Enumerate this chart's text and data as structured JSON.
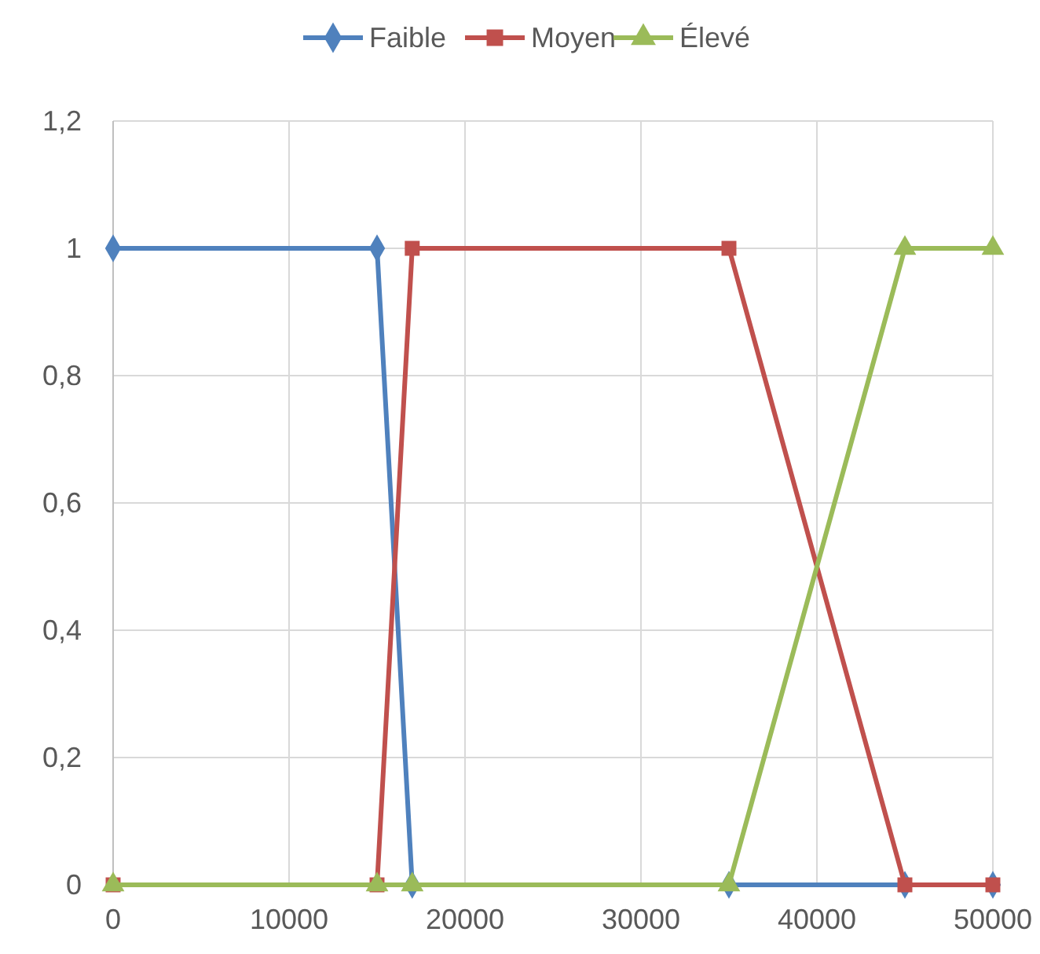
{
  "chart_data": {
    "type": "line",
    "x": [
      0,
      15000,
      17000,
      35000,
      45000,
      50000
    ],
    "series": [
      {
        "name": "Faible",
        "color": "#4f81bd",
        "values": [
          1,
          1,
          0,
          0,
          0,
          0
        ],
        "marker": "diamond"
      },
      {
        "name": "Moyen",
        "color": "#c0504d",
        "values": [
          0,
          0,
          1,
          1,
          0,
          0
        ],
        "marker": "square"
      },
      {
        "name": "Élevé",
        "color": "#9bbb59",
        "values": [
          0,
          0,
          0,
          0,
          1,
          1
        ],
        "marker": "triangle"
      }
    ],
    "xlim": [
      0,
      50000
    ],
    "xticks": [
      0,
      10000,
      20000,
      30000,
      40000,
      50000
    ],
    "ylim": [
      0,
      1.2
    ],
    "yticks": [
      {
        "value": 0,
        "label": "0"
      },
      {
        "value": 0.2,
        "label": "0,2"
      },
      {
        "value": 0.4,
        "label": "0,4"
      },
      {
        "value": 0.6,
        "label": "0,6"
      },
      {
        "value": 0.8,
        "label": "0,8"
      },
      {
        "value": 1,
        "label": "1"
      },
      {
        "value": 1.2,
        "label": "1,2"
      }
    ],
    "grid": true,
    "legend": "top"
  }
}
